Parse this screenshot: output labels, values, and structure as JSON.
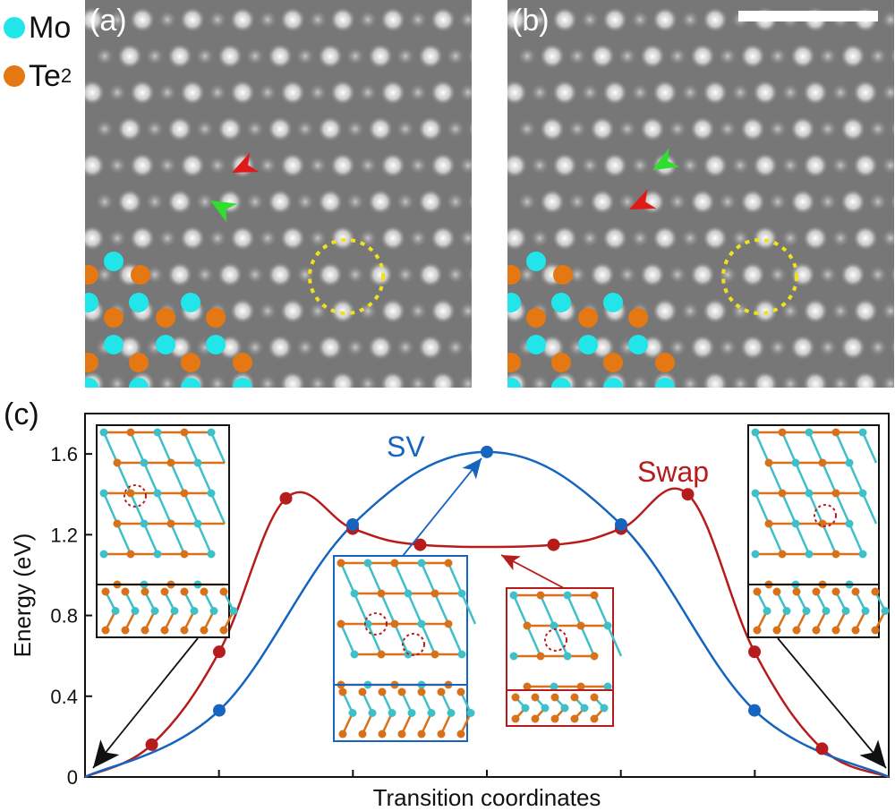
{
  "legend": {
    "mo": {
      "label": "Mo",
      "color": "#22e5ea"
    },
    "te": {
      "label": "Te",
      "sub": "2",
      "color": "#e57812"
    }
  },
  "panels": {
    "a": {
      "label": "(a)"
    },
    "b": {
      "label": "(b)"
    },
    "c": {
      "label": "(c)"
    }
  },
  "colors": {
    "sv": "#1565c0",
    "swap": "#b71c1c",
    "mo": "#3fc0c8",
    "te": "#d9711a",
    "arrow_green": "#2ee02e",
    "arrow_red": "#e01a1a",
    "defect_circle": "#f0e020",
    "scale_bar": "#ffffff"
  },
  "chart_data": {
    "type": "line",
    "xlabel": "Transition coordinates",
    "ylabel": "Energy (eV)",
    "ylim": [
      0,
      1.8
    ],
    "xlim": [
      0,
      1
    ],
    "yticks": [
      "0",
      "0.4",
      "0.8",
      "1.2",
      "1.6"
    ],
    "ytick_values": [
      0,
      0.4,
      0.8,
      1.2,
      1.6
    ],
    "series": [
      {
        "name": "SV",
        "x": [
          0,
          0.167,
          0.333,
          0.5,
          0.667,
          0.833,
          1
        ],
        "y": [
          0,
          0.33,
          1.25,
          1.61,
          1.25,
          0.33,
          0
        ]
      },
      {
        "name": "Swap",
        "x": [
          0,
          0.083,
          0.167,
          0.25,
          0.333,
          0.417,
          0.583,
          0.667,
          0.75,
          0.833,
          0.917,
          1
        ],
        "y": [
          0,
          0.16,
          0.62,
          1.38,
          1.23,
          1.15,
          1.15,
          1.23,
          1.4,
          0.62,
          0.14,
          0
        ]
      }
    ]
  }
}
